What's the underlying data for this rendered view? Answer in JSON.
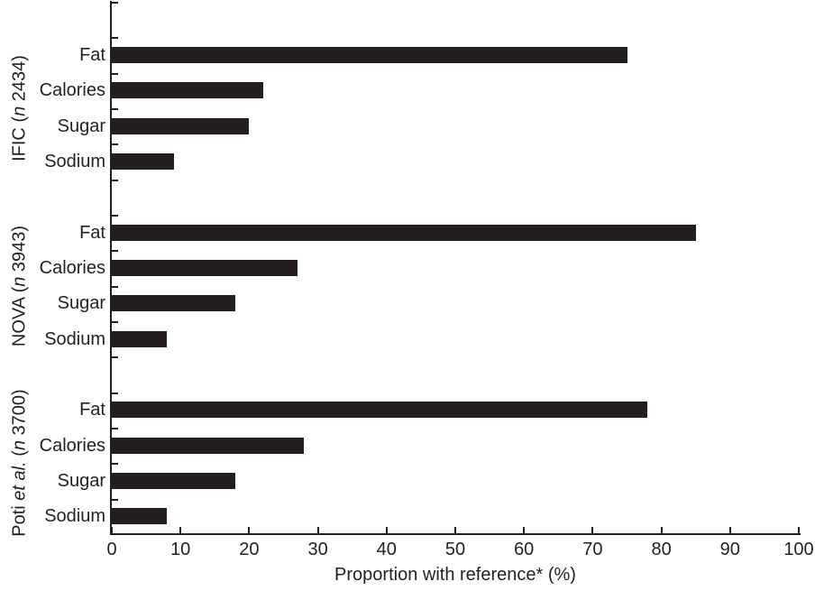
{
  "chart_data": {
    "type": "bar",
    "orientation": "horizontal",
    "title": "",
    "xlabel": "Proportion with reference* (%)",
    "xlim": [
      0,
      100
    ],
    "xticks": [
      0,
      10,
      20,
      30,
      40,
      50,
      60,
      70,
      80,
      90,
      100
    ],
    "grid": false,
    "legend": false,
    "bar_color": "#231f20",
    "categories": [
      "Fat",
      "Calories",
      "Sugar",
      "Sodium"
    ],
    "groups": [
      {
        "name": "IFIC (n 2434)",
        "label_parts": [
          {
            "text": "IFIC (",
            "italic": false
          },
          {
            "text": "n",
            "italic": true
          },
          {
            "text": " 2434)",
            "italic": false
          }
        ],
        "values": [
          75,
          22,
          20,
          9
        ]
      },
      {
        "name": "NOVA (n 3943)",
        "label_parts": [
          {
            "text": "NOVA (",
            "italic": false
          },
          {
            "text": "n",
            "italic": true
          },
          {
            "text": " 3943)",
            "italic": false
          }
        ],
        "values": [
          85,
          27,
          18,
          8
        ]
      },
      {
        "name": "Poti et al. (n 3700)",
        "label_parts": [
          {
            "text": "Poti ",
            "italic": false
          },
          {
            "text": "et al.",
            "italic": true
          },
          {
            "text": " (",
            "italic": false
          },
          {
            "text": "n",
            "italic": true
          },
          {
            "text": " 3700)",
            "italic": false
          }
        ],
        "values": [
          78,
          28,
          18,
          8
        ]
      }
    ]
  }
}
